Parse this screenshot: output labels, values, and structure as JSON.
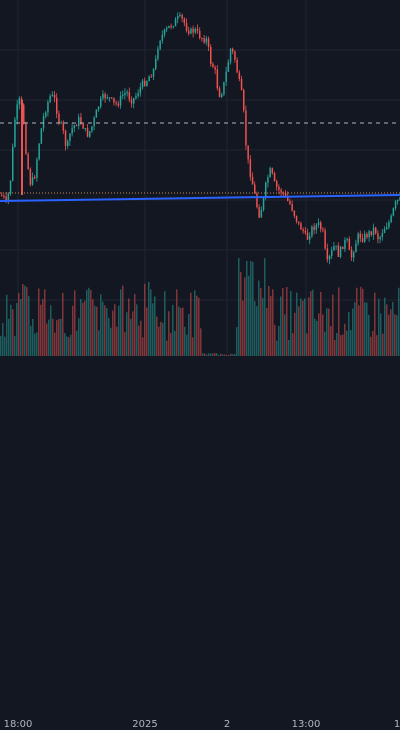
{
  "colors": {
    "background": "#131722",
    "grid": "#1f2433",
    "up": "#26a69a",
    "down": "#ef5350",
    "trendline": "#2962ff",
    "dashed_line": "#b2b5be",
    "dotted_line": "#c98b4d",
    "axis_text": "#b2b5be"
  },
  "time_axis": {
    "labels": [
      "18:00",
      "2025",
      "2",
      "13:00",
      "1"
    ]
  },
  "chart_data": {
    "type": "candlestick",
    "x_tick_labels": [
      "18:00",
      "2025",
      "2",
      "13:00",
      "1"
    ],
    "grid": true,
    "series": [
      {
        "kind": "candles",
        "close_path": [
          [
            0,
            195
          ],
          [
            3,
            198
          ],
          [
            6,
            205
          ],
          [
            10,
            178
          ],
          [
            14,
            120
          ],
          [
            18,
            100
          ],
          [
            22,
            110
          ],
          [
            26,
            160
          ],
          [
            30,
            185
          ],
          [
            34,
            175
          ],
          [
            38,
            145
          ],
          [
            42,
            120
          ],
          [
            46,
            105
          ],
          [
            50,
            95
          ],
          [
            54,
            100
          ],
          [
            58,
            120
          ],
          [
            62,
            130
          ],
          [
            66,
            150
          ],
          [
            70,
            130
          ],
          [
            74,
            125
          ],
          [
            78,
            120
          ],
          [
            82,
            125
          ],
          [
            86,
            135
          ],
          [
            90,
            130
          ],
          [
            94,
            118
          ],
          [
            98,
            105
          ],
          [
            102,
            98
          ],
          [
            106,
            95
          ],
          [
            110,
            100
          ],
          [
            114,
            105
          ],
          [
            118,
            102
          ],
          [
            122,
            95
          ],
          [
            126,
            92
          ],
          [
            130,
            100
          ],
          [
            134,
            98
          ],
          [
            138,
            90
          ],
          [
            142,
            84
          ],
          [
            146,
            80
          ],
          [
            150,
            74
          ],
          [
            154,
            68
          ],
          [
            158,
            40
          ],
          [
            162,
            35
          ],
          [
            166,
            30
          ],
          [
            170,
            25
          ],
          [
            174,
            22
          ],
          [
            178,
            18
          ],
          [
            182,
            20
          ],
          [
            186,
            28
          ],
          [
            190,
            32
          ],
          [
            194,
            30
          ],
          [
            198,
            35
          ],
          [
            202,
            38
          ],
          [
            206,
            40
          ],
          [
            210,
            62
          ],
          [
            214,
            70
          ],
          [
            218,
            95
          ],
          [
            222,
            90
          ],
          [
            226,
            70
          ],
          [
            230,
            48
          ],
          [
            234,
            58
          ],
          [
            238,
            80
          ],
          [
            242,
            100
          ],
          [
            246,
            155
          ],
          [
            250,
            175
          ],
          [
            254,
            195
          ],
          [
            258,
            215
          ],
          [
            262,
            205
          ],
          [
            266,
            180
          ],
          [
            270,
            170
          ],
          [
            274,
            185
          ],
          [
            278,
            190
          ],
          [
            282,
            192
          ],
          [
            286,
            200
          ],
          [
            290,
            205
          ],
          [
            294,
            215
          ],
          [
            298,
            225
          ],
          [
            302,
            230
          ],
          [
            306,
            240
          ],
          [
            310,
            230
          ],
          [
            314,
            226
          ],
          [
            318,
            225
          ],
          [
            322,
            232
          ],
          [
            326,
            265
          ],
          [
            330,
            255
          ],
          [
            334,
            245
          ],
          [
            338,
            255
          ],
          [
            342,
            245
          ],
          [
            346,
            240
          ],
          [
            350,
            260
          ],
          [
            354,
            245
          ],
          [
            358,
            235
          ],
          [
            362,
            238
          ],
          [
            366,
            235
          ],
          [
            370,
            232
          ],
          [
            374,
            228
          ],
          [
            378,
            240
          ],
          [
            382,
            230
          ],
          [
            386,
            225
          ],
          [
            390,
            220
          ],
          [
            394,
            205
          ],
          [
            398,
            200
          ]
        ]
      },
      {
        "kind": "volume"
      }
    ]
  }
}
